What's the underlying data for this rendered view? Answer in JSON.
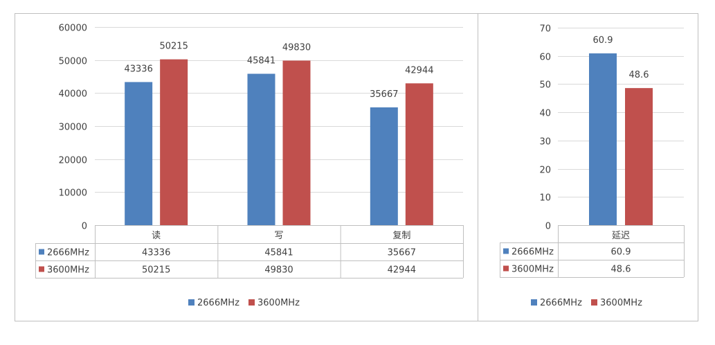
{
  "colors": {
    "series1": "#4F81BD",
    "series2": "#C0504D",
    "grid": "#D9D9D9",
    "border": "#BFBFBF",
    "text": "#404040"
  },
  "chart_data": [
    {
      "type": "bar",
      "categories": [
        "读",
        "写",
        "复制"
      ],
      "series": [
        {
          "name": "2666MHz",
          "values": [
            43336,
            45841,
            35667
          ]
        },
        {
          "name": "3600MHz",
          "values": [
            50215,
            49830,
            42944
          ]
        }
      ],
      "ylim": [
        0,
        60000
      ],
      "yticks": [
        0,
        10000,
        20000,
        30000,
        40000,
        50000,
        60000
      ],
      "data_table": true,
      "legend": "bottom",
      "grid": true
    },
    {
      "type": "bar",
      "categories": [
        "延迟"
      ],
      "series": [
        {
          "name": "2666MHz",
          "values": [
            60.9
          ]
        },
        {
          "name": "3600MHz",
          "values": [
            48.6
          ]
        }
      ],
      "ylim": [
        0,
        70
      ],
      "yticks": [
        0,
        10,
        20,
        30,
        40,
        50,
        60,
        70
      ],
      "data_table": true,
      "legend": "bottom",
      "grid": true
    }
  ]
}
